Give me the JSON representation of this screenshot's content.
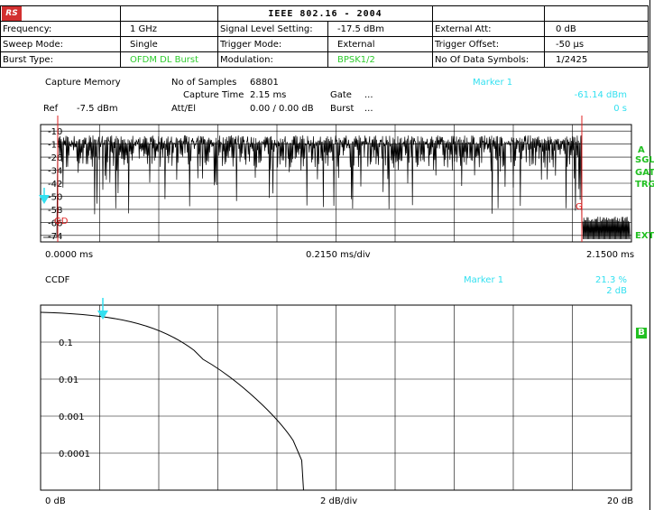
{
  "header": {
    "title": "IEEE 802.16 - 2004",
    "rows": [
      [
        {
          "label": "Frequency:",
          "value": "1 GHz",
          "vcolor": "#000"
        },
        {
          "label": "Signal Level Setting:",
          "value": "-17.5 dBm",
          "vcolor": "#000"
        },
        {
          "label": "External Att:",
          "value": "0 dB",
          "vcolor": "#000"
        }
      ],
      [
        {
          "label": "Sweep Mode:",
          "value": "Single",
          "vcolor": "#000"
        },
        {
          "label": "Trigger Mode:",
          "value": "External",
          "vcolor": "#000"
        },
        {
          "label": "Trigger Offset:",
          "value": "-50 µs",
          "vcolor": "#000"
        }
      ],
      [
        {
          "label": "Burst Type:",
          "value": "OFDM DL Burst",
          "vcolor": "#2ecc2e"
        },
        {
          "label": "Modulation:",
          "value": "BPSK1/2",
          "vcolor": "#2ecc2e"
        },
        {
          "label": "No Of Data Symbols:",
          "value": "1/2425",
          "vcolor": "#000"
        }
      ]
    ]
  },
  "logo": "RS",
  "capture": {
    "title": "Capture Memory",
    "samples_label": "No of Samples",
    "samples_value": "68801",
    "time_label": "Capture Time",
    "time_value": "2.15 ms",
    "gate_label": "Gate",
    "gate_value": "...",
    "burst_label": "Burst",
    "burst_value": "...",
    "ref_label": "Ref",
    "ref_value": "-7.5 dBm",
    "att_label": "Att/El",
    "att_value": "0.00 / 0.00 dB",
    "marker_label": "Marker  1",
    "marker_value": "-61.14 dBm",
    "marker_time": "0 s",
    "y_ticks": [
      "-10",
      "-18",
      "-26",
      "-34",
      "-42",
      "-50",
      "-58",
      "-66",
      "-74"
    ],
    "x_start": "0.0000 ms",
    "x_div": "0.2150 ms/div",
    "x_end": "2.1500 ms",
    "side_labels": [
      "A",
      "SGL",
      "GAT",
      "TRG",
      "EXT"
    ],
    "g_marker": "G",
    "gd_marker": "GD"
  },
  "ccdf": {
    "title": "CCDF",
    "marker_label": "Marker  1",
    "marker_value": "21.3 %",
    "marker_db": "2 dB",
    "y_ticks": [
      "0.1",
      "0.01",
      "0.001",
      "0.0001"
    ],
    "x_start": "0 dB",
    "x_div": "2 dB/div",
    "x_end": "20 dB",
    "side_box": "B"
  }
}
